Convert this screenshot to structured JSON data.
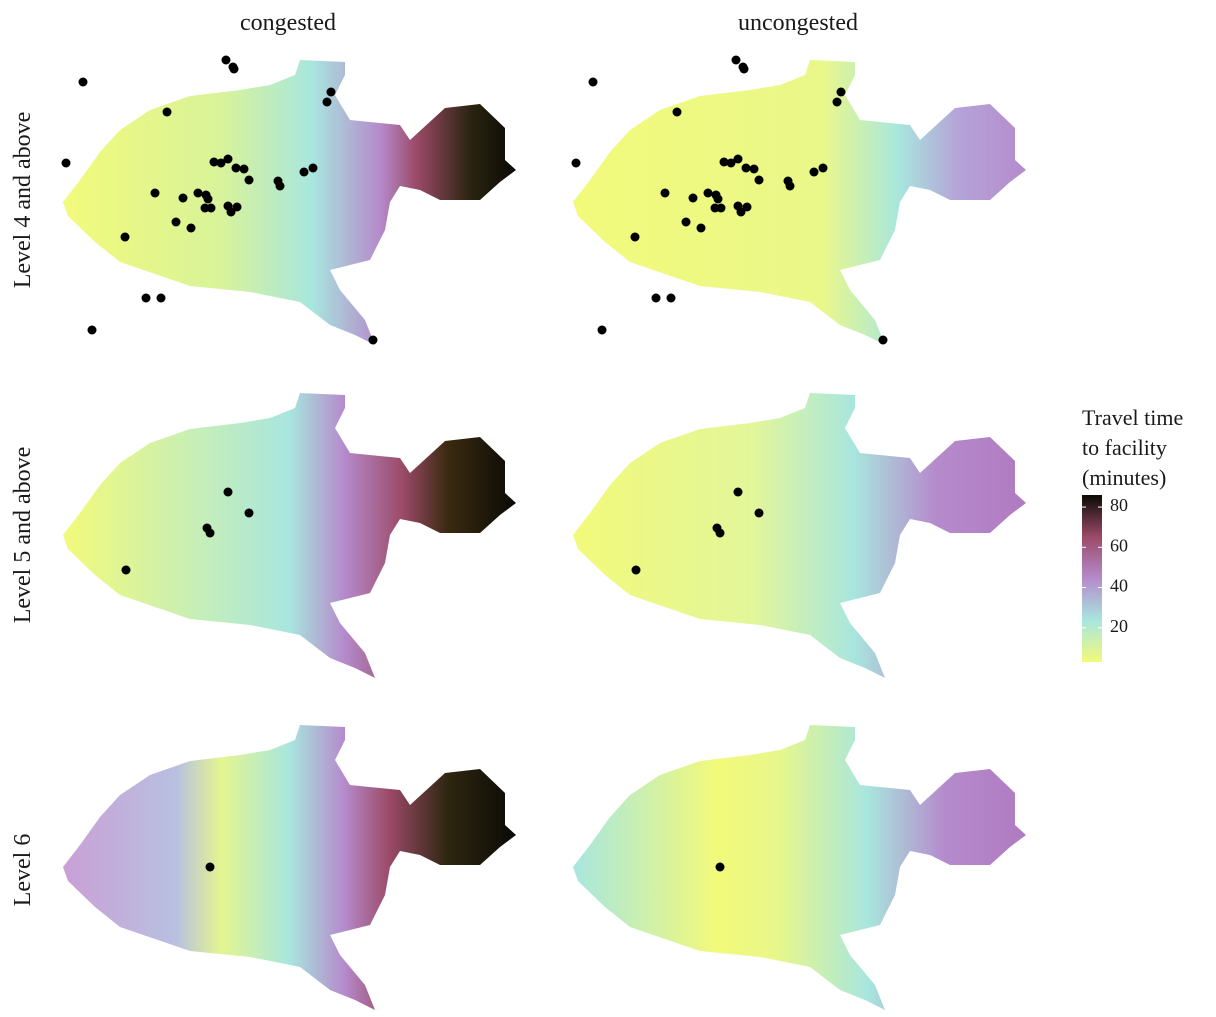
{
  "column_labels": [
    "congested",
    "uncongested"
  ],
  "row_labels": [
    "Level 4 and above",
    "Level 5 and above",
    "Level 6"
  ],
  "legend": {
    "title": [
      "Travel time",
      "to facility",
      "(minutes)"
    ],
    "lim": [
      3,
      86
    ],
    "ticks": [
      20,
      40,
      60,
      80
    ],
    "colors": [
      "#f2fa7a",
      "#a8e6de",
      "#b58bcc",
      "#9b4a68",
      "#0a0a05"
    ]
  }
}
